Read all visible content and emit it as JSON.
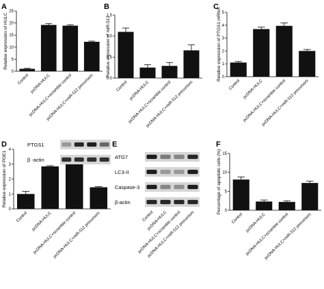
{
  "chart_data": [
    {
      "panel": "A",
      "type": "bar",
      "ylabel": "Relative expression of HULC",
      "categories": [
        "Control",
        "pcDNA-HULC",
        "pcDNA-HULC+scramble control",
        "pcDNA-HULC+miR-512 precursors"
      ],
      "values": [
        1.0,
        19.2,
        18.9,
        12.2
      ],
      "errors": [
        0.2,
        0.6,
        0.4,
        0.3
      ],
      "ylim": [
        0,
        25
      ],
      "yticks": [
        "0",
        "5",
        "10",
        "15",
        "20",
        "25"
      ]
    },
    {
      "panel": "B",
      "type": "bar",
      "ylabel": "Relative expression of miR-512",
      "categories": [
        "Control",
        "pcDNA-HULC",
        "pcDNA-HULC+scramble control",
        "pcDNA-HULC+miR-512 precursors"
      ],
      "values": [
        1.1,
        0.25,
        0.29,
        0.66
      ],
      "errors": [
        0.09,
        0.07,
        0.08,
        0.13
      ],
      "ylim": [
        0,
        1.5
      ],
      "yticks": [
        "0.0",
        "0.5",
        "1.0",
        "1.5"
      ]
    },
    {
      "panel": "C",
      "type": "bar",
      "ylabel": "Relative expression of PTGS1 mRNA",
      "categories": [
        "Control",
        "pcDNA-HULC",
        "pcDNA-HULC+scramble control",
        "pcDNA-HULC+miR-512 precursors"
      ],
      "values": [
        1.1,
        3.7,
        3.95,
        2.0
      ],
      "errors": [
        0.08,
        0.15,
        0.22,
        0.12
      ],
      "ylim": [
        0,
        5
      ],
      "yticks": [
        "0",
        "1",
        "2",
        "3",
        "4",
        "5"
      ]
    },
    {
      "panel": "D",
      "type": "bar",
      "ylabel": "Relative expression of PGE1",
      "categories": [
        "Control",
        "pcDNA-HULC",
        "pcDNA-HULC+scramble control",
        "pcDNA-HULC+miR-512 precursors"
      ],
      "values": [
        1.0,
        2.85,
        3.0,
        1.45
      ],
      "errors": [
        0.18,
        0.05,
        0.14,
        0.04
      ],
      "ylim": [
        0,
        4
      ],
      "yticks": [
        "0",
        "1",
        "2",
        "3",
        "4"
      ]
    },
    {
      "panel": "F",
      "type": "bar",
      "ylabel": "Percentage of apoptotic cells (%)",
      "categories": [
        "Control",
        "pcDNA-HULC",
        "pcDNA-HULC+scramble control",
        "pcDNA-HULC+miR-512 precursors"
      ],
      "values": [
        8.1,
        2.3,
        2.2,
        7.2
      ],
      "errors": [
        0.7,
        0.4,
        0.3,
        0.5
      ],
      "ylim": [
        0,
        15
      ],
      "yticks": [
        "0",
        "5",
        "10",
        "15"
      ]
    }
  ],
  "blots": {
    "panel_d": {
      "labels": [
        "PTGS1",
        "β -actin"
      ],
      "intensity": [
        [
          0.25,
          0.85,
          0.9,
          0.5
        ],
        [
          0.8,
          0.8,
          0.8,
          0.8
        ]
      ]
    },
    "panel_e": {
      "letter": "E",
      "labels": [
        "ATG7",
        "LC3-II",
        "Caspase-3",
        "β-actin"
      ],
      "intensity": [
        [
          0.9,
          0.4,
          0.35,
          0.85
        ],
        [
          0.9,
          0.25,
          0.25,
          0.9
        ],
        [
          0.9,
          0.35,
          0.3,
          0.9
        ],
        [
          0.85,
          0.85,
          0.85,
          0.85
        ]
      ],
      "categories": [
        "Control",
        "pcDNA-HULC",
        "pcDNA-HULC+scramble control",
        "pcDNA-HULC+miR-512 precursors"
      ]
    }
  }
}
